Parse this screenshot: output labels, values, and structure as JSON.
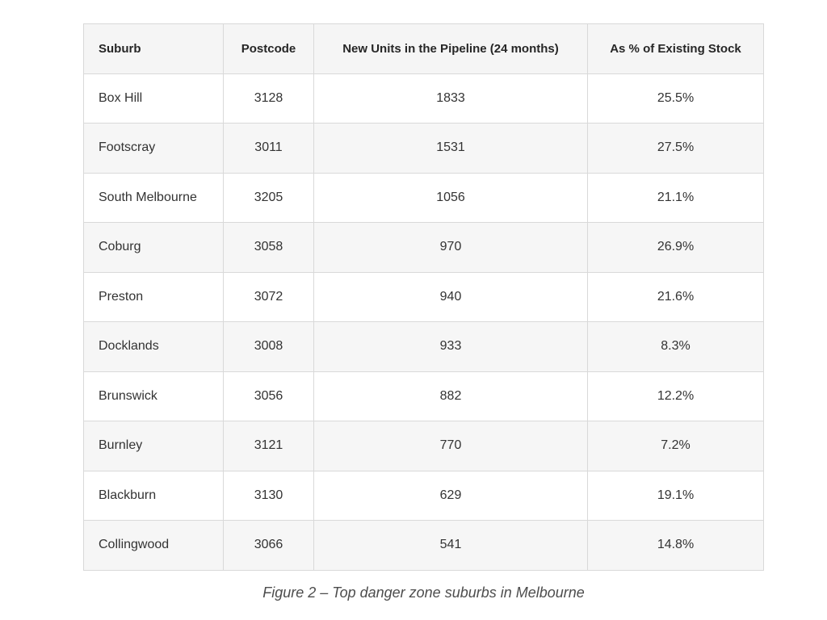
{
  "table": {
    "headers": {
      "suburb": "Suburb",
      "postcode": "Postcode",
      "new_units": "New Units in the Pipeline (24 months)",
      "pct_existing_stock": "As % of Existing Stock"
    },
    "rows": [
      {
        "suburb": "Box Hill",
        "postcode": "3128",
        "new_units": "1833",
        "pct_existing_stock": "25.5%"
      },
      {
        "suburb": "Footscray",
        "postcode": "3011",
        "new_units": "1531",
        "pct_existing_stock": "27.5%"
      },
      {
        "suburb": "South Melbourne",
        "postcode": "3205",
        "new_units": "1056",
        "pct_existing_stock": "21.1%"
      },
      {
        "suburb": "Coburg",
        "postcode": "3058",
        "new_units": "970",
        "pct_existing_stock": "26.9%"
      },
      {
        "suburb": "Preston",
        "postcode": "3072",
        "new_units": "940",
        "pct_existing_stock": "21.6%"
      },
      {
        "suburb": "Docklands",
        "postcode": "3008",
        "new_units": "933",
        "pct_existing_stock": "8.3%"
      },
      {
        "suburb": "Brunswick",
        "postcode": "3056",
        "new_units": "882",
        "pct_existing_stock": "12.2%"
      },
      {
        "suburb": "Burnley",
        "postcode": "3121",
        "new_units": "770",
        "pct_existing_stock": "7.2%"
      },
      {
        "suburb": "Blackburn",
        "postcode": "3130",
        "new_units": "629",
        "pct_existing_stock": "19.1%"
      },
      {
        "suburb": "Collingwood",
        "postcode": "3066",
        "new_units": "541",
        "pct_existing_stock": "14.8%"
      }
    ]
  },
  "caption": "Figure 2 – Top danger zone suburbs in Melbourne"
}
